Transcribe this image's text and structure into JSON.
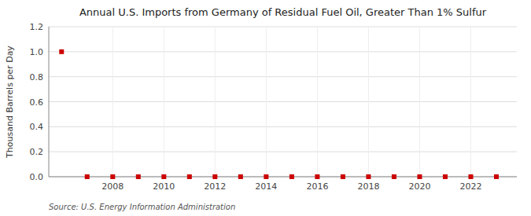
{
  "chart_data": {
    "type": "scatter",
    "title": "Annual U.S. Imports from Germany of Residual Fuel Oil, Greater Than 1% Sulfur",
    "ylabel": "Thousand Barrels per Day",
    "annotations": [
      "Source: U.S. Energy Information Administration"
    ],
    "x": [
      2006,
      2007,
      2008,
      2009,
      2010,
      2011,
      2012,
      2013,
      2014,
      2015,
      2016,
      2017,
      2018,
      2019,
      2020,
      2021,
      2022,
      2023
    ],
    "values": [
      1.0,
      0.0,
      0.0,
      0.0,
      0.0,
      0.0,
      0.0,
      0.0,
      0.0,
      0.0,
      0.0,
      0.0,
      0.0,
      0.0,
      0.0,
      0.0,
      0.0,
      0.0
    ],
    "color": "#cc0000",
    "marker": "square",
    "xlim": [
      2005.5,
      2023.8
    ],
    "xticks": [
      2008,
      2010,
      2012,
      2014,
      2016,
      2018,
      2020,
      2022
    ],
    "ylim": [
      0.0,
      1.2
    ],
    "yticks": [
      {
        "value": 0.0,
        "label": "0.0"
      },
      0.2,
      0.4,
      0.6,
      0.8,
      {
        "value": 1.0,
        "label": "1.0"
      },
      1.2
    ],
    "grid": true
  }
}
